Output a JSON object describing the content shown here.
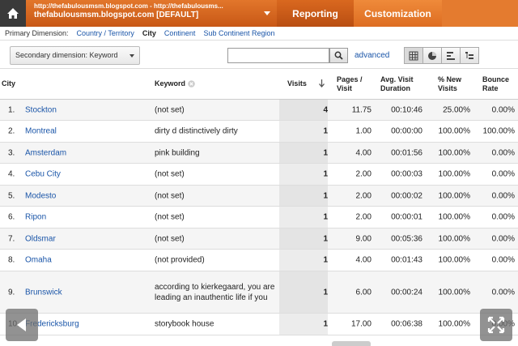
{
  "header": {
    "account_url": "http://thefabulousmsm.blogspot.com - http://thefabulousms...",
    "profile": "thefabulousmsm.blogspot.com [DEFAULT]",
    "tabs": [
      {
        "label": "Reporting"
      },
      {
        "label": "Customization"
      }
    ]
  },
  "primary_dimension": {
    "label": "Primary Dimension:",
    "options": [
      "Country / Territory",
      "City",
      "Continent",
      "Sub Continent Region"
    ],
    "selected": "City"
  },
  "toolbar": {
    "secondary_dimension": "Secondary dimension: Keyword",
    "search_value": "",
    "advanced_label": "advanced"
  },
  "table": {
    "headers": {
      "city": "City",
      "keyword": "Keyword",
      "visits": "Visits",
      "pages_line1": "Pages /",
      "pages_line2": "Visit",
      "avg_line1": "Avg. Visit",
      "avg_line2": "Duration",
      "new_line1": "% New",
      "new_line2": "Visits",
      "bounce_line1": "Bounce",
      "bounce_line2": "Rate"
    },
    "rows": [
      {
        "idx": "1.",
        "city": "Stockton",
        "keyword": "(not set)",
        "visits": "4",
        "pages": "11.75",
        "avg": "00:10:46",
        "new": "25.00%",
        "bounce": "0.00%"
      },
      {
        "idx": "2.",
        "city": "Montreal",
        "keyword": "dirty d distinctively dirty",
        "visits": "1",
        "pages": "1.00",
        "avg": "00:00:00",
        "new": "100.00%",
        "bounce": "100.00%"
      },
      {
        "idx": "3.",
        "city": "Amsterdam",
        "keyword": "pink building",
        "visits": "1",
        "pages": "4.00",
        "avg": "00:01:56",
        "new": "100.00%",
        "bounce": "0.00%"
      },
      {
        "idx": "4.",
        "city": "Cebu City",
        "keyword": "(not set)",
        "visits": "1",
        "pages": "2.00",
        "avg": "00:00:03",
        "new": "100.00%",
        "bounce": "0.00%"
      },
      {
        "idx": "5.",
        "city": "Modesto",
        "keyword": "(not set)",
        "visits": "1",
        "pages": "2.00",
        "avg": "00:00:02",
        "new": "100.00%",
        "bounce": "0.00%"
      },
      {
        "idx": "6.",
        "city": "Ripon",
        "keyword": "(not set)",
        "visits": "1",
        "pages": "2.00",
        "avg": "00:00:01",
        "new": "100.00%",
        "bounce": "0.00%"
      },
      {
        "idx": "7.",
        "city": "Oldsmar",
        "keyword": "(not set)",
        "visits": "1",
        "pages": "9.00",
        "avg": "00:05:36",
        "new": "100.00%",
        "bounce": "0.00%"
      },
      {
        "idx": "8.",
        "city": "Omaha",
        "keyword": "(not provided)",
        "visits": "1",
        "pages": "4.00",
        "avg": "00:01:43",
        "new": "100.00%",
        "bounce": "0.00%"
      },
      {
        "idx": "9.",
        "city": "Brunswick",
        "keyword": "according to kierkegaard, you are leading an inauthentic life if you",
        "visits": "1",
        "pages": "6.00",
        "avg": "00:00:24",
        "new": "100.00%",
        "bounce": "0.00%"
      },
      {
        "idx": "10.",
        "city": "Fredericksburg",
        "keyword": "storybook house",
        "visits": "1",
        "pages": "17.00",
        "avg": "00:06:38",
        "new": "100.00%",
        "bounce": "0.00%"
      }
    ]
  },
  "icons": [
    "home-icon",
    "search-icon",
    "table-view-icon",
    "pie-view-icon",
    "bar-view-icon",
    "pivot-view-icon",
    "prev-arrow-icon",
    "fullscreen-icon",
    "sort-arrow-icon",
    "remove-dimension-icon"
  ]
}
